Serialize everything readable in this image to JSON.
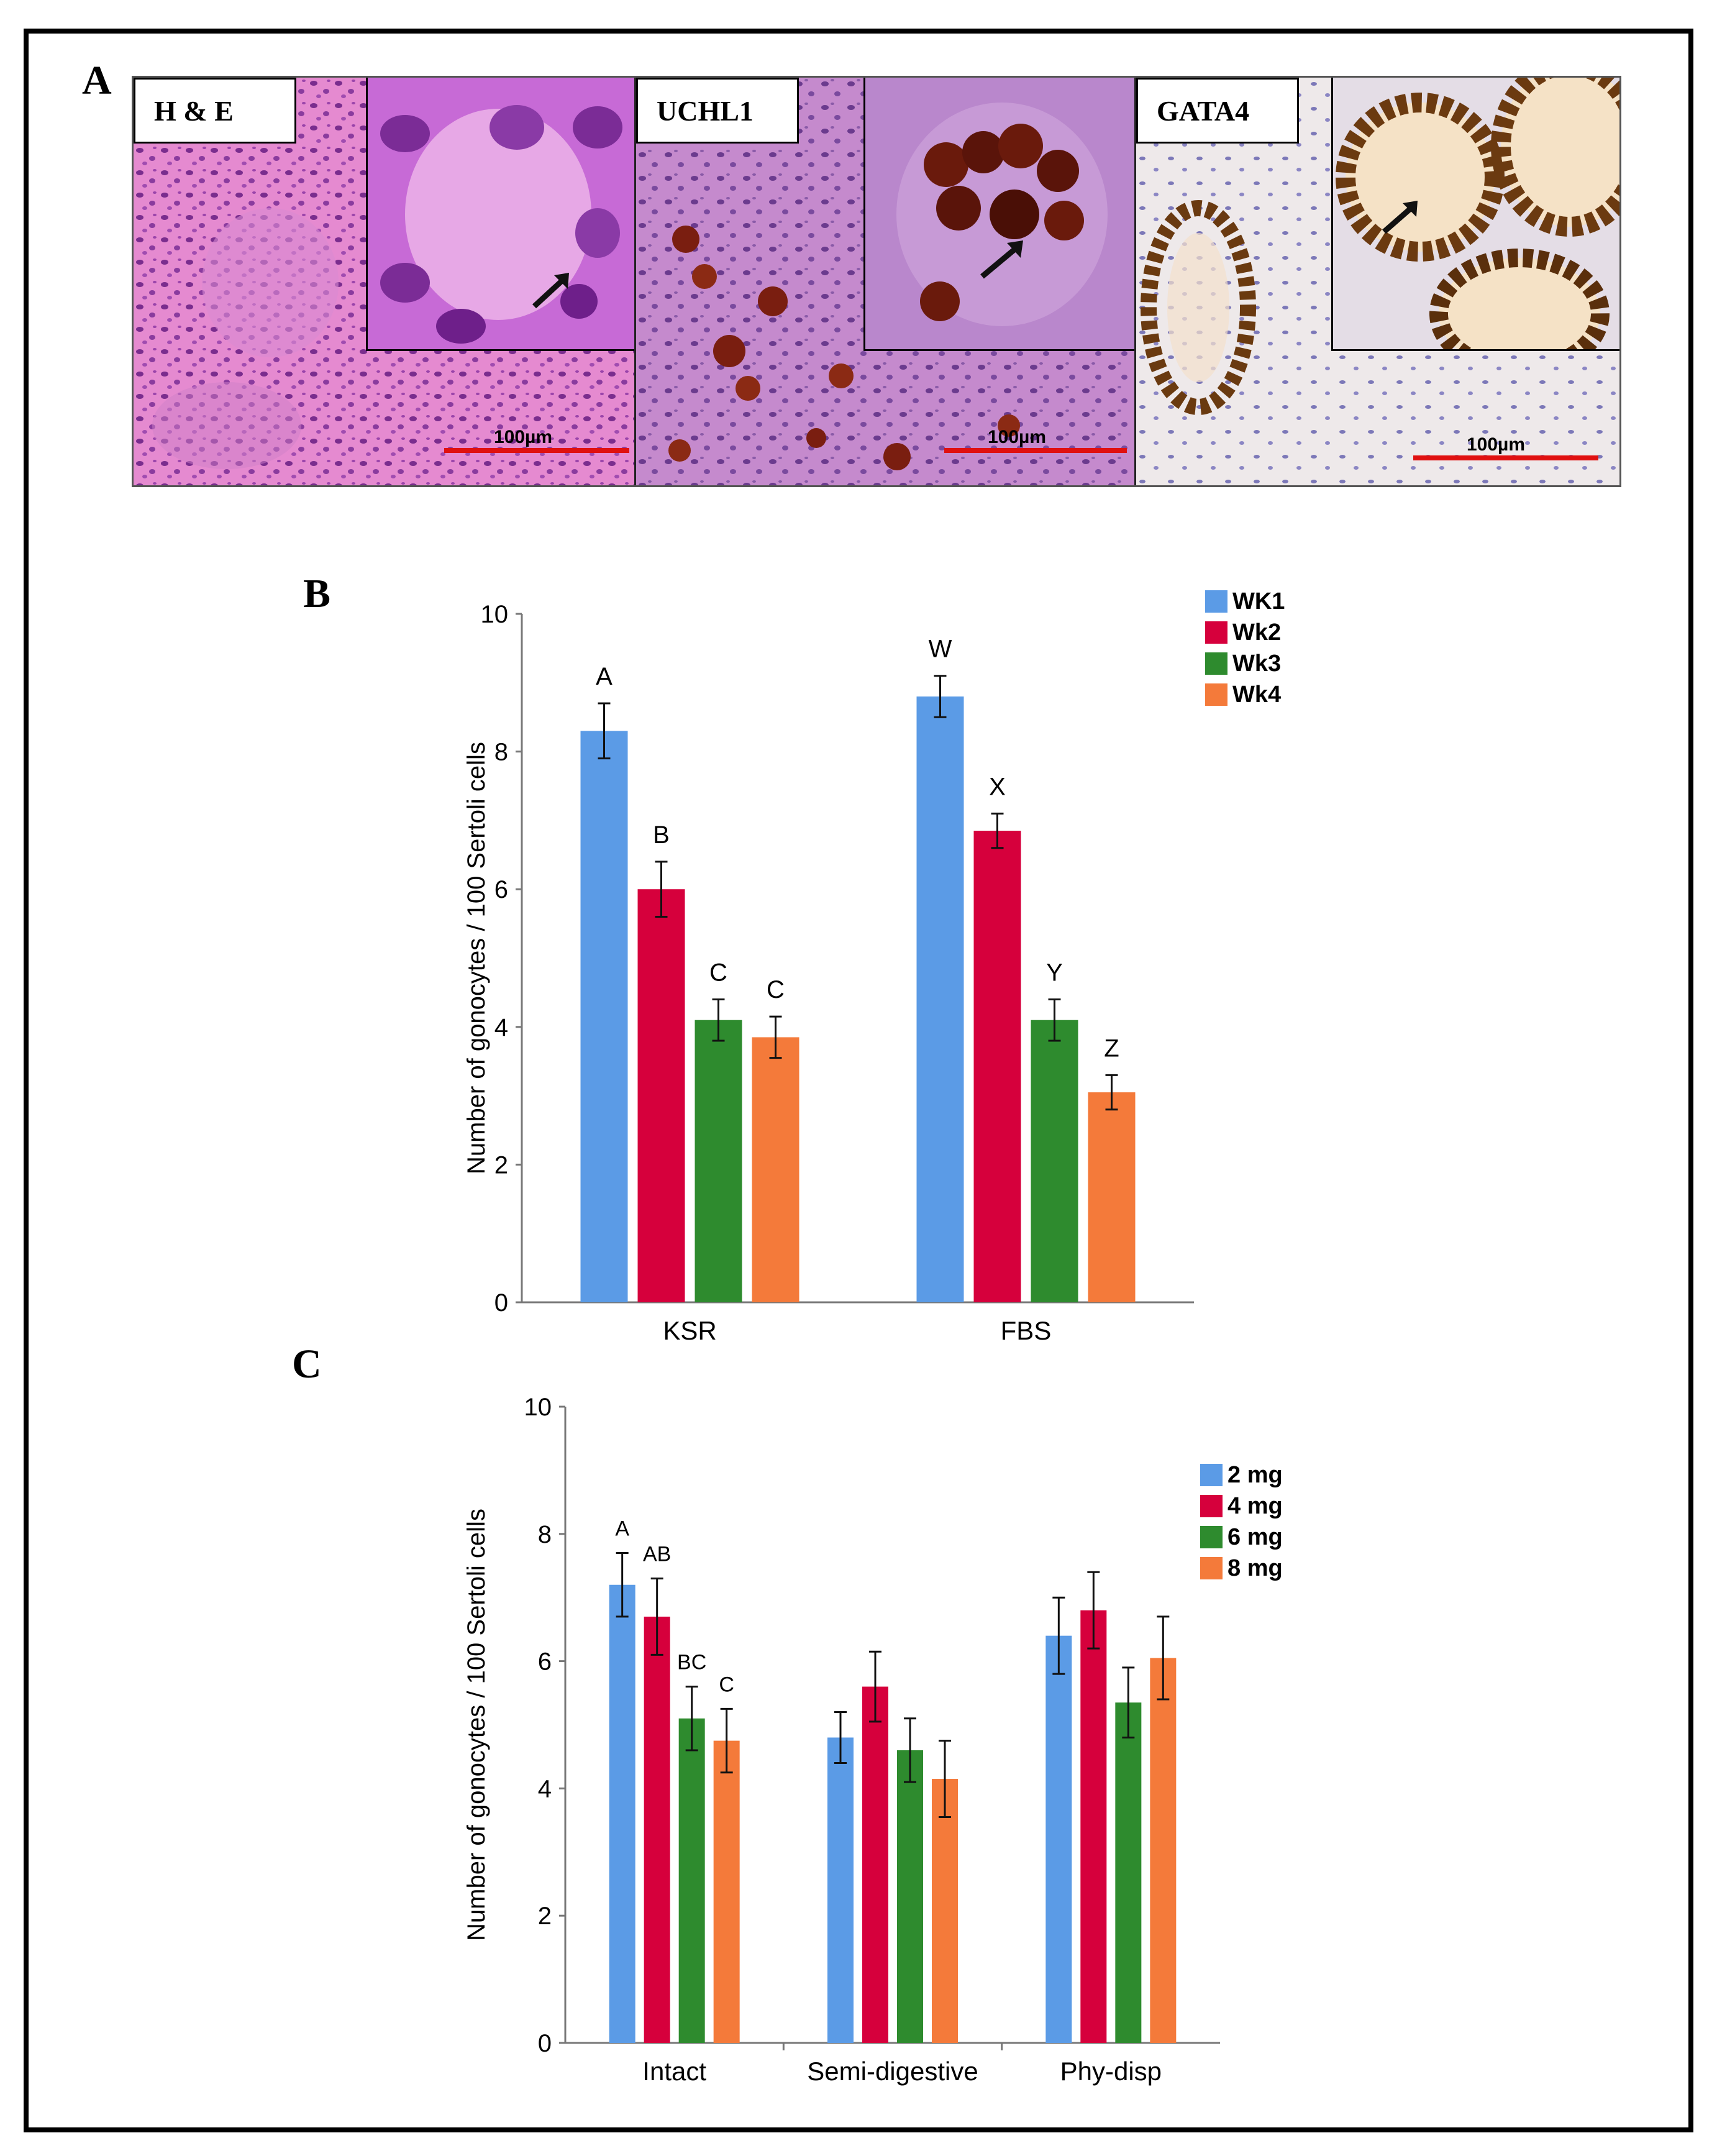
{
  "panel_letters": {
    "a": "A",
    "b": "B",
    "c": "C"
  },
  "micrographs": [
    {
      "label": "H & E",
      "scale": "100µm",
      "stain": "he"
    },
    {
      "label": "UCHL1",
      "scale": "100µm",
      "stain": "uchl1"
    },
    {
      "label": "GATA4",
      "scale": "100µm",
      "stain": "gata4"
    }
  ],
  "colors": {
    "blue": "#5b9be6",
    "red": "#d6003c",
    "green": "#2e8b2e",
    "orange": "#f47a3a",
    "scale_bar": "#e01010"
  },
  "chart_data": [
    {
      "type": "bar",
      "ylabel": "Number of gonocytes / 100 Sertoli cells",
      "ylim": [
        0,
        10
      ],
      "yticks": [
        "0",
        "2",
        "4",
        "6",
        "8",
        "10"
      ],
      "categories": [
        "KSR",
        "FBS"
      ],
      "legend_position": "top-right",
      "series": [
        {
          "name": "WK1",
          "color": "#5b9be6",
          "values": [
            8.3,
            8.8
          ],
          "errors": [
            0.4,
            0.3
          ],
          "letters": [
            "A",
            "W"
          ]
        },
        {
          "name": "Wk2",
          "color": "#d6003c",
          "values": [
            6.0,
            6.85
          ],
          "errors": [
            0.4,
            0.25
          ],
          "letters": [
            "B",
            "X"
          ]
        },
        {
          "name": "Wk3",
          "color": "#2e8b2e",
          "values": [
            4.1,
            4.1
          ],
          "errors": [
            0.3,
            0.3
          ],
          "letters": [
            "C",
            "Y"
          ]
        },
        {
          "name": "Wk4",
          "color": "#f47a3a",
          "values": [
            3.85,
            3.05
          ],
          "errors": [
            0.3,
            0.25
          ],
          "letters": [
            "C",
            "Z"
          ]
        }
      ]
    },
    {
      "type": "bar",
      "ylabel": "Number of gonocytes / 100 Sertoli cells",
      "ylim": [
        0,
        10
      ],
      "yticks": [
        "0",
        "2",
        "4",
        "6",
        "8",
        "10"
      ],
      "categories": [
        "Intact",
        "Semi-digestive",
        "Phy-disp"
      ],
      "legend_position": "top-right",
      "series": [
        {
          "name": "2 mg",
          "color": "#5b9be6",
          "values": [
            7.2,
            4.8,
            6.4
          ],
          "errors": [
            0.5,
            0.4,
            0.6
          ],
          "letters": [
            "A",
            "",
            ""
          ]
        },
        {
          "name": "4 mg",
          "color": "#d6003c",
          "values": [
            6.7,
            5.6,
            6.8
          ],
          "errors": [
            0.6,
            0.55,
            0.6
          ],
          "letters": [
            "AB",
            "",
            ""
          ]
        },
        {
          "name": "6 mg",
          "color": "#2e8b2e",
          "values": [
            5.1,
            4.6,
            5.35
          ],
          "errors": [
            0.5,
            0.5,
            0.55
          ],
          "letters": [
            "BC",
            "",
            ""
          ]
        },
        {
          "name": "8 mg",
          "color": "#f47a3a",
          "values": [
            4.75,
            4.15,
            6.05
          ],
          "errors": [
            0.5,
            0.6,
            0.65
          ],
          "letters": [
            "C",
            "",
            ""
          ]
        }
      ]
    }
  ]
}
